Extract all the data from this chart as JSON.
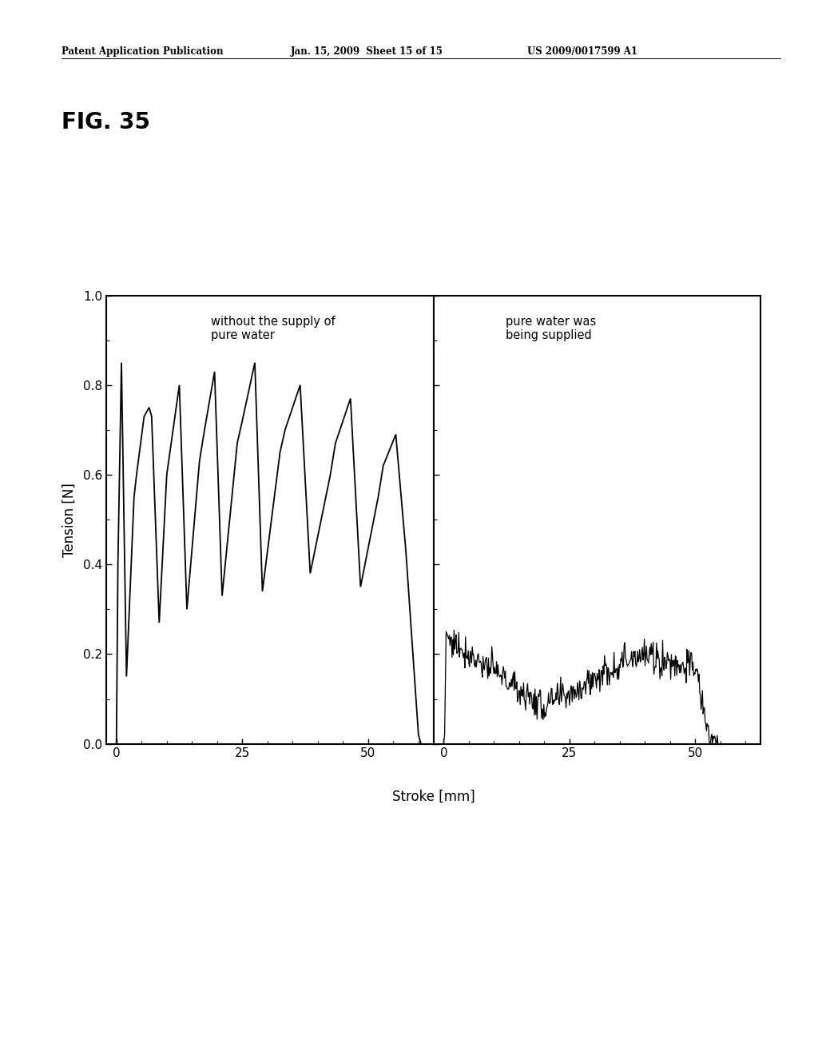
{
  "fig_label": "FIG. 35",
  "header_left": "Patent Application Publication",
  "header_center": "Jan. 15, 2009  Sheet 15 of 15",
  "header_right": "US 2009/0017599 A1",
  "ylabel": "Tension [N]",
  "xlabel": "Stroke [mm]",
  "ylim": [
    0.0,
    1.0
  ],
  "yticks": [
    0.0,
    0.2,
    0.4,
    0.6,
    0.8,
    1.0
  ],
  "xticks_left": [
    0,
    25,
    50
  ],
  "xticks_right": [
    0,
    25,
    50
  ],
  "label_left": "without the supply of\npure water",
  "label_right": "pure water was\nbeing supplied",
  "bg_color": "#ffffff",
  "line_color": "#000000"
}
